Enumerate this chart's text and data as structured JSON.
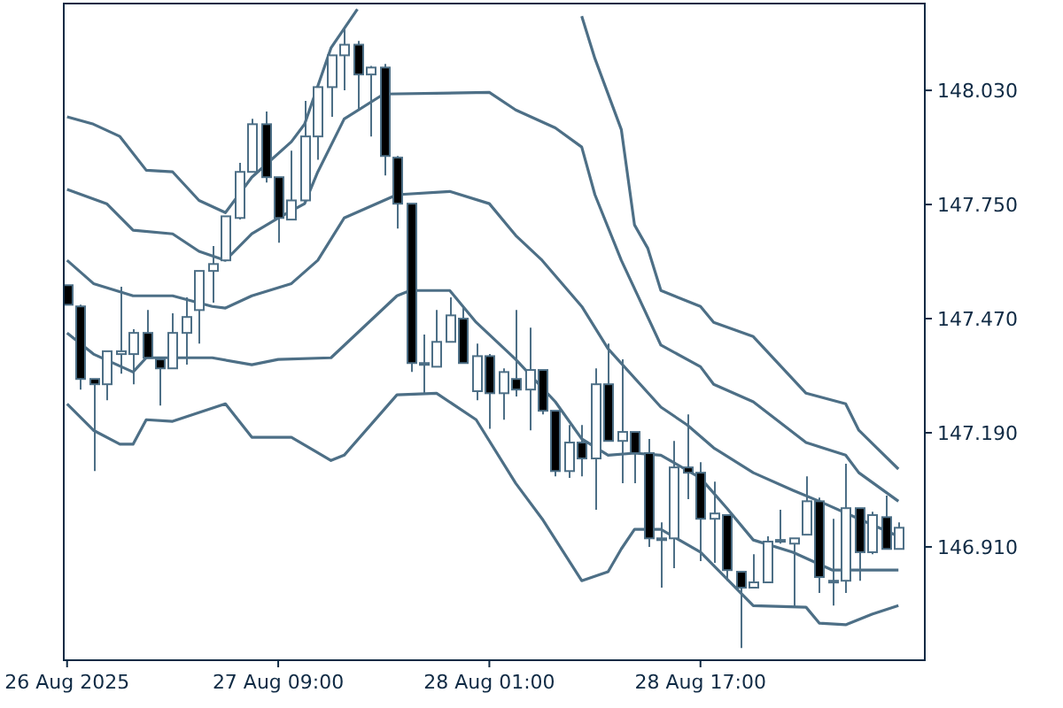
{
  "chart_data": {
    "type": "candlestick",
    "colors": [
      "#000000",
      "#000000",
      "#000000",
      "#ffffff",
      "#ffffff",
      "#ffffff",
      "#000000",
      "#000000",
      "#ffffff",
      "#ffffff",
      "#ffffff",
      "#ffffff",
      "#ffffff",
      "#ffffff",
      "#ffffff",
      "#000000",
      "#000000",
      "#ffffff",
      "#ffffff",
      "#ffffff",
      "#ffffff",
      "#ffffff",
      "#000000",
      "#ffffff",
      "#000000",
      "#000000",
      "#000000",
      "#000000",
      "#ffffff",
      "#ffffff",
      "#000000",
      "#ffffff",
      "#000000",
      "#ffffff",
      "#000000",
      "#ffffff",
      "#000000",
      "#000000",
      "#ffffff",
      "#000000",
      "#ffffff",
      "#000000",
      "#ffffff",
      "#000000",
      "#000000",
      "#ffffff",
      "#ffffff",
      "#000000",
      "#000000",
      "#ffffff",
      "#000000",
      "#000000",
      "#ffffff",
      "#ffffff",
      "#ffffff",
      "#ffffff",
      "#ffffff",
      "#000000",
      "#ffffff",
      "#ffffff",
      "#000000",
      "#ffffff",
      "#000000",
      "#ffffff"
    ],
    "x": [
      "2025-08-26T17:00",
      "2025-08-26T18:00",
      "2025-08-26T19:00",
      "2025-08-26T20:00",
      "2025-08-26T21:00",
      "2025-08-26T22:00",
      "2025-08-26T23:00",
      "2025-08-27T00:00",
      "2025-08-27T01:00",
      "2025-08-27T02:00",
      "2025-08-27T03:00",
      "2025-08-27T04:00",
      "2025-08-27T05:00",
      "2025-08-27T06:00",
      "2025-08-27T07:00",
      "2025-08-27T08:00",
      "2025-08-27T09:00",
      "2025-08-27T10:00",
      "2025-08-27T11:00",
      "2025-08-27T12:00",
      "2025-08-27T13:00",
      "2025-08-27T14:00",
      "2025-08-27T15:00",
      "2025-08-27T16:00",
      "2025-08-27T17:00",
      "2025-08-27T18:00",
      "2025-08-27T19:00",
      "2025-08-27T20:00",
      "2025-08-27T21:00",
      "2025-08-27T22:00",
      "2025-08-27T23:00",
      "2025-08-28T00:00",
      "2025-08-28T01:00",
      "2025-08-28T02:00",
      "2025-08-28T03:00",
      "2025-08-28T04:00",
      "2025-08-28T05:00",
      "2025-08-28T06:00",
      "2025-08-28T07:00",
      "2025-08-28T08:00",
      "2025-08-28T09:00",
      "2025-08-28T10:00",
      "2025-08-28T11:00",
      "2025-08-28T12:00",
      "2025-08-28T13:00",
      "2025-08-28T14:00",
      "2025-08-28T15:00",
      "2025-08-28T16:00",
      "2025-08-28T17:00",
      "2025-08-28T18:00",
      "2025-08-28T19:00",
      "2025-08-28T20:00",
      "2025-08-28T21:00",
      "2025-08-28T22:00",
      "2025-08-28T23:00",
      "2025-08-29T00:00",
      "2025-08-29T01:00",
      "2025-08-29T02:00",
      "2025-08-29T03:00",
      "2025-08-29T04:00",
      "2025-08-29T05:00",
      "2025-08-29T06:00",
      "2025-08-29T07:00",
      "2025-08-29T08:00"
    ],
    "ohlc": [
      [
        147.552,
        147.552,
        147.504,
        147.504
      ],
      [
        147.5,
        147.504,
        147.296,
        147.322
      ],
      [
        147.322,
        147.322,
        147.096,
        147.309
      ],
      [
        147.309,
        147.39,
        147.27,
        147.39
      ],
      [
        147.383,
        147.548,
        147.335,
        147.39
      ],
      [
        147.383,
        147.444,
        147.309,
        147.435
      ],
      [
        147.435,
        147.491,
        147.374,
        147.374
      ],
      [
        147.37,
        147.374,
        147.257,
        147.348
      ],
      [
        147.348,
        147.483,
        147.348,
        147.435
      ],
      [
        147.435,
        147.522,
        147.357,
        147.474
      ],
      [
        147.491,
        147.587,
        147.409,
        147.587
      ],
      [
        147.587,
        147.648,
        147.509,
        147.604
      ],
      [
        147.613,
        147.721,
        147.613,
        147.721
      ],
      [
        147.717,
        147.852,
        147.713,
        147.83
      ],
      [
        147.83,
        147.96,
        147.83,
        147.947
      ],
      [
        147.947,
        147.978,
        147.804,
        147.817
      ],
      [
        147.817,
        147.817,
        147.656,
        147.717
      ],
      [
        147.713,
        147.882,
        147.713,
        147.76
      ],
      [
        147.76,
        148.004,
        147.76,
        147.917
      ],
      [
        147.917,
        148.038,
        147.86,
        148.038
      ],
      [
        148.038,
        148.116,
        147.965,
        148.116
      ],
      [
        148.116,
        148.186,
        148.03,
        148.142
      ],
      [
        148.142,
        148.151,
        147.982,
        148.069
      ],
      [
        148.069,
        148.09,
        147.917,
        148.086
      ],
      [
        148.086,
        148.095,
        147.821,
        147.869
      ],
      [
        147.865,
        147.869,
        147.691,
        147.752
      ],
      [
        147.752,
        147.752,
        147.339,
        147.361
      ],
      [
        147.361,
        147.431,
        147.287,
        147.357
      ],
      [
        147.352,
        147.491,
        147.352,
        147.413
      ],
      [
        147.413,
        147.522,
        147.413,
        147.478
      ],
      [
        147.47,
        147.5,
        147.361,
        147.361
      ],
      [
        147.292,
        147.409,
        147.27,
        147.378
      ],
      [
        147.378,
        147.383,
        147.2,
        147.287
      ],
      [
        147.287,
        147.348,
        147.222,
        147.339
      ],
      [
        147.322,
        147.491,
        147.279,
        147.296
      ],
      [
        147.296,
        147.448,
        147.196,
        147.344
      ],
      [
        147.344,
        147.344,
        147.235,
        147.244
      ],
      [
        147.244,
        147.244,
        147.083,
        147.096
      ],
      [
        147.096,
        147.209,
        147.079,
        147.166
      ],
      [
        147.166,
        147.209,
        147.083,
        147.127
      ],
      [
        147.127,
        147.348,
        147.001,
        147.309
      ],
      [
        147.309,
        147.409,
        147.17,
        147.17
      ],
      [
        147.17,
        147.37,
        147.066,
        147.192
      ],
      [
        147.192,
        147.192,
        147.066,
        147.14
      ],
      [
        147.14,
        147.175,
        146.91,
        146.931
      ],
      [
        146.931,
        146.97,
        146.81,
        146.931
      ],
      [
        146.931,
        147.17,
        146.858,
        147.105
      ],
      [
        147.105,
        147.235,
        147.027,
        147.092
      ],
      [
        147.092,
        147.118,
        146.875,
        146.979
      ],
      [
        146.979,
        147.07,
        146.871,
        146.992
      ],
      [
        146.988,
        146.988,
        146.827,
        146.853
      ],
      [
        146.849,
        146.849,
        146.662,
        146.81
      ],
      [
        146.81,
        146.892,
        146.81,
        146.823
      ],
      [
        146.823,
        146.936,
        146.823,
        146.923
      ],
      [
        146.923,
        147.001,
        146.918,
        146.927
      ],
      [
        146.918,
        146.931,
        146.762,
        146.931
      ],
      [
        146.94,
        147.083,
        146.94,
        147.022
      ],
      [
        147.022,
        147.031,
        146.797,
        146.836
      ],
      [
        146.827,
        146.979,
        146.766,
        146.827
      ],
      [
        146.827,
        147.114,
        146.797,
        147.005
      ],
      [
        147.005,
        147.005,
        146.827,
        146.897
      ],
      [
        146.897,
        146.996,
        146.892,
        146.988
      ],
      [
        146.983,
        147.036,
        146.905,
        146.905
      ],
      [
        146.905,
        146.97,
        146.905,
        146.957
      ]
    ],
    "series": [
      {
        "type": "line",
        "color": "#4d6f86",
        "x": [
          "2025-08-26T17:00",
          "2025-08-26T19:00",
          "2025-08-26T21:00",
          "2025-08-26T23:00",
          "2025-08-27T01:00",
          "2025-08-27T03:00",
          "2025-08-27T05:00",
          "2025-08-27T07:00",
          "2025-08-27T10:00",
          "2025-08-27T11:00",
          "2025-08-27T13:00",
          "2025-08-27T15:00",
          "2025-08-27T23:00",
          "2025-08-28T08:00",
          "2025-08-28T09:00",
          "2025-08-28T11:00",
          "2025-08-28T12:00",
          "2025-08-28T13:00",
          "2025-08-28T14:00",
          "2025-08-28T17:00",
          "2025-08-28T18:00",
          "2025-08-28T21:00",
          "2025-08-29T01:00",
          "2025-08-29T04:00",
          "2025-08-29T05:00",
          "2025-08-29T08:00"
        ],
        "values": [
          147.965,
          147.947,
          147.917,
          147.834,
          147.83,
          147.76,
          147.73,
          147.817,
          147.904,
          147.947,
          148.134,
          148.229,
          null,
          148.212,
          148.108,
          147.934,
          147.7,
          147.643,
          147.539,
          147.5,
          147.461,
          147.426,
          147.287,
          147.261,
          147.196,
          147.101
        ]
      },
      {
        "type": "line",
        "color": "#4d6f86",
        "x": [
          "2025-08-26T17:00",
          "2025-08-26T20:00",
          "2025-08-26T22:00",
          "2025-08-27T01:00",
          "2025-08-27T03:00",
          "2025-08-27T05:00",
          "2025-08-27T07:00",
          "2025-08-27T09:00",
          "2025-08-27T11:00",
          "2025-08-27T12:00",
          "2025-08-27T14:00",
          "2025-08-27T17:00",
          "2025-08-28T01:00",
          "2025-08-28T03:00",
          "2025-08-28T06:00",
          "2025-08-28T08:00",
          "2025-08-28T09:00",
          "2025-08-28T11:00",
          "2025-08-28T14:00",
          "2025-08-28T17:00",
          "2025-08-28T18:00",
          "2025-08-28T21:00",
          "2025-08-29T01:00",
          "2025-08-29T04:00",
          "2025-08-29T05:00",
          "2025-08-29T08:00"
        ],
        "values": [
          147.787,
          147.752,
          147.687,
          147.678,
          147.635,
          147.613,
          147.678,
          147.717,
          147.752,
          147.83,
          147.96,
          148.021,
          148.025,
          147.982,
          147.938,
          147.891,
          147.774,
          147.613,
          147.405,
          147.352,
          147.309,
          147.266,
          147.166,
          147.135,
          147.092,
          147.022
        ]
      },
      {
        "type": "line",
        "color": "#4d6f86",
        "x": [
          "2025-08-26T17:00",
          "2025-08-26T19:00",
          "2025-08-26T22:00",
          "2025-08-27T01:00",
          "2025-08-27T04:00",
          "2025-08-27T05:00",
          "2025-08-27T07:00",
          "2025-08-27T10:00",
          "2025-08-27T12:00",
          "2025-08-27T14:00",
          "2025-08-27T18:00",
          "2025-08-27T22:00",
          "2025-08-28T01:00",
          "2025-08-28T03:00",
          "2025-08-28T05:00",
          "2025-08-28T08:00",
          "2025-08-28T10:00",
          "2025-08-28T14:00",
          "2025-08-28T16:00",
          "2025-08-28T18:00",
          "2025-08-28T21:00",
          "2025-08-29T00:00",
          "2025-08-29T02:00",
          "2025-08-29T05:00",
          "2025-08-29T08:00"
        ],
        "values": [
          147.613,
          147.556,
          147.526,
          147.526,
          147.5,
          147.496,
          147.526,
          147.556,
          147.613,
          147.717,
          147.774,
          147.782,
          147.752,
          147.674,
          147.613,
          147.5,
          147.396,
          147.253,
          147.209,
          147.153,
          147.092,
          147.049,
          147.022,
          146.979,
          146.936
        ]
      },
      {
        "type": "line",
        "color": "#4d6f86",
        "x": [
          "2025-08-26T17:00",
          "2025-08-26T19:00",
          "2025-08-26T22:00",
          "2025-08-26T23:00",
          "2025-08-27T04:00",
          "2025-08-27T07:00",
          "2025-08-27T09:00",
          "2025-08-27T13:00",
          "2025-08-27T18:00",
          "2025-08-27T19:00",
          "2025-08-27T22:00",
          "2025-08-28T00:00",
          "2025-08-28T03:00",
          "2025-08-28T06:00",
          "2025-08-28T08:00",
          "2025-08-28T10:00",
          "2025-08-28T12:00",
          "2025-08-28T14:00",
          "2025-08-28T17:00",
          "2025-08-28T19:00",
          "2025-08-28T21:00",
          "2025-08-29T00:00",
          "2025-08-29T03:00",
          "2025-08-29T08:00"
        ],
        "values": [
          147.435,
          147.383,
          147.339,
          147.374,
          147.374,
          147.357,
          147.37,
          147.374,
          147.526,
          147.539,
          147.539,
          147.461,
          147.37,
          147.266,
          147.175,
          147.135,
          147.14,
          147.135,
          147.079,
          147.005,
          146.927,
          146.897,
          146.853,
          146.853
        ]
      },
      {
        "type": "line",
        "color": "#4d6f86",
        "x": [
          "2025-08-26T17:00",
          "2025-08-26T19:00",
          "2025-08-26T21:00",
          "2025-08-26T22:00",
          "2025-08-26T23:00",
          "2025-08-27T01:00",
          "2025-08-27T05:00",
          "2025-08-27T07:00",
          "2025-08-27T10:00",
          "2025-08-27T13:00",
          "2025-08-27T14:00",
          "2025-08-27T18:00",
          "2025-08-27T21:00",
          "2025-08-28T00:00",
          "2025-08-28T03:00",
          "2025-08-28T05:00",
          "2025-08-28T08:00",
          "2025-08-28T10:00",
          "2025-08-28T11:00",
          "2025-08-28T12:00",
          "2025-08-28T14:00",
          "2025-08-28T17:00",
          "2025-08-28T21:00",
          "2025-08-29T01:00",
          "2025-08-29T02:00",
          "2025-08-29T04:00",
          "2025-08-29T06:00",
          "2025-08-29T08:00"
        ],
        "values": [
          147.261,
          147.196,
          147.162,
          147.162,
          147.222,
          147.218,
          147.261,
          147.179,
          147.179,
          147.122,
          147.135,
          147.283,
          147.287,
          147.222,
          147.066,
          146.979,
          146.827,
          146.849,
          146.905,
          146.953,
          146.953,
          146.897,
          146.766,
          146.762,
          146.723,
          146.719,
          146.745,
          146.766
        ]
      }
    ],
    "xlim": [
      "2025-08-26T16:45",
      "2025-08-29T10:00"
    ],
    "xticks": [
      {
        "value": "2025-08-26T17:00",
        "label": "26 Aug 2025"
      },
      {
        "value": "2025-08-27T09:00",
        "label": "27 Aug 09:00"
      },
      {
        "value": "2025-08-28T01:00",
        "label": "28 Aug 01:00"
      },
      {
        "value": "2025-08-28T17:00",
        "label": "28 Aug 17:00"
      }
    ],
    "ylim": [
      146.632,
      148.243
    ],
    "yticks": [
      {
        "value": 146.91,
        "label": "146.910"
      },
      {
        "value": 147.19,
        "label": "147.190"
      },
      {
        "value": 147.47,
        "label": "147.470"
      },
      {
        "value": 147.75,
        "label": "147.750"
      },
      {
        "value": 148.03,
        "label": "148.030"
      }
    ],
    "grid": false
  }
}
